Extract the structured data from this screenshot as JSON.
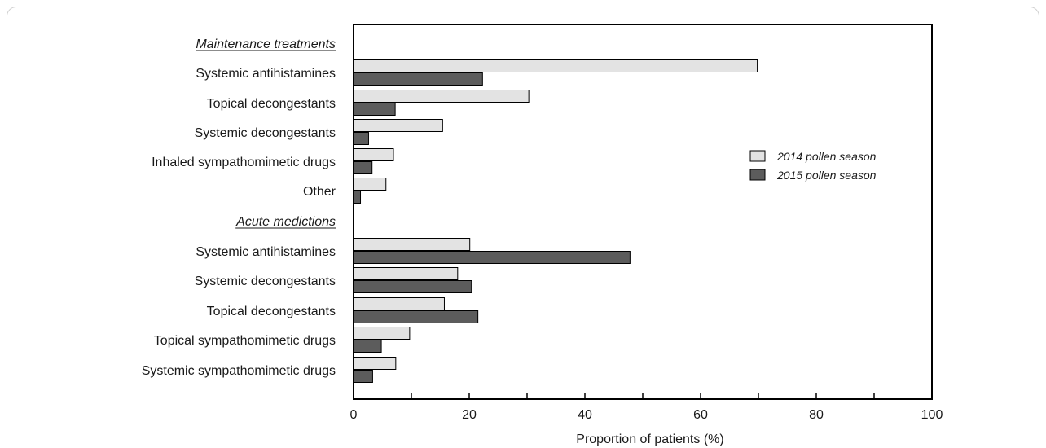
{
  "chart_data": {
    "type": "bar",
    "orientation": "horizontal",
    "xlabel": "Proportion of patients (%)",
    "xlim": [
      0,
      100
    ],
    "xticks": [
      "0",
      "20",
      "40",
      "60",
      "80",
      "100"
    ],
    "grid": false,
    "legend_position": "right",
    "sections": [
      {
        "label": "Maintenance treatments",
        "categories": [
          "Systemic antihistamines",
          "Topical decongestants",
          "Systemic decongestants",
          "Inhaled sympathomimetic drugs",
          "Other"
        ],
        "series_values": [
          [
            69.8,
            30.3,
            15.4,
            6.9,
            5.6
          ],
          [
            22.3,
            7.2,
            2.6,
            3.2,
            1.2
          ]
        ]
      },
      {
        "label": "Acute medictions",
        "categories": [
          "Systemic antihistamines",
          "Systemic decongestants",
          "Topical decongestants",
          "Topical sympathomimetic drugs",
          "Systemic sympathomimetic drugs"
        ],
        "series_values": [
          [
            20.1,
            18.0,
            15.7,
            9.7,
            7.3
          ],
          [
            47.8,
            20.4,
            21.5,
            4.8,
            3.3
          ]
        ]
      }
    ],
    "series": [
      {
        "name": "2014 pollen season",
        "color": "#e3e3e3"
      },
      {
        "name": "2015 pollen season",
        "color": "#5c5c5c"
      }
    ]
  }
}
